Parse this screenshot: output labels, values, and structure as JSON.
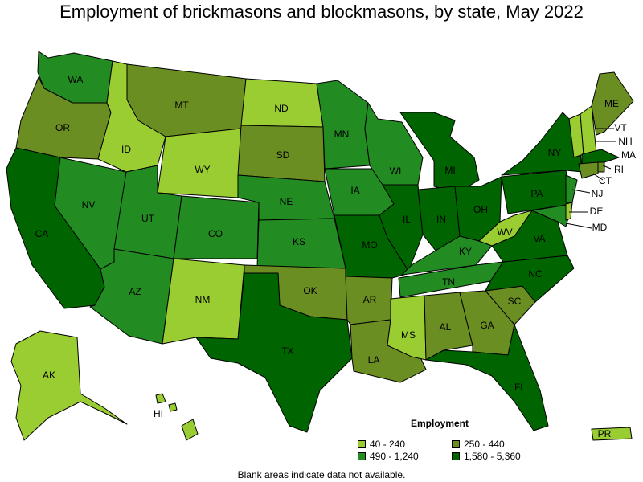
{
  "title": "Employment of brickmasons and blockmasons, by state, May 2022",
  "legend": {
    "title": "Employment",
    "ranges": [
      {
        "label": "40 - 240",
        "color": "#9acd32"
      },
      {
        "label": "250 - 440",
        "color": "#6b8e23"
      },
      {
        "label": "490 - 1,240",
        "color": "#228b22"
      },
      {
        "label": "1,580 - 5,360",
        "color": "#006400"
      }
    ]
  },
  "footnote": "Blank areas indicate data not available.",
  "states": {
    "WA": 2,
    "OR": 1,
    "CA": 3,
    "NV": 2,
    "ID": 0,
    "MT": 1,
    "WY": 0,
    "UT": 2,
    "AZ": 2,
    "CO": 2,
    "NM": 0,
    "ND": 0,
    "SD": 1,
    "NE": 2,
    "KS": 2,
    "OK": 1,
    "TX": 3,
    "MN": 2,
    "IA": 2,
    "MO": 3,
    "AR": 1,
    "LA": 1,
    "WI": 2,
    "IL": 3,
    "MI": 3,
    "IN": 3,
    "OH": 3,
    "KY": 2,
    "TN": 2,
    "MS": 0,
    "AL": 1,
    "GA": 1,
    "FL": 3,
    "SC": 1,
    "NC": 3,
    "VA": 3,
    "WV": 0,
    "PA": 3,
    "NY": 3,
    "ME": 1,
    "VT": 0,
    "NH": 0,
    "MA": 3,
    "RI": 1,
    "CT": 1,
    "NJ": 2,
    "DE": 0,
    "MD": 2,
    "AK": 0,
    "HI": 0,
    "PR": 0
  }
}
